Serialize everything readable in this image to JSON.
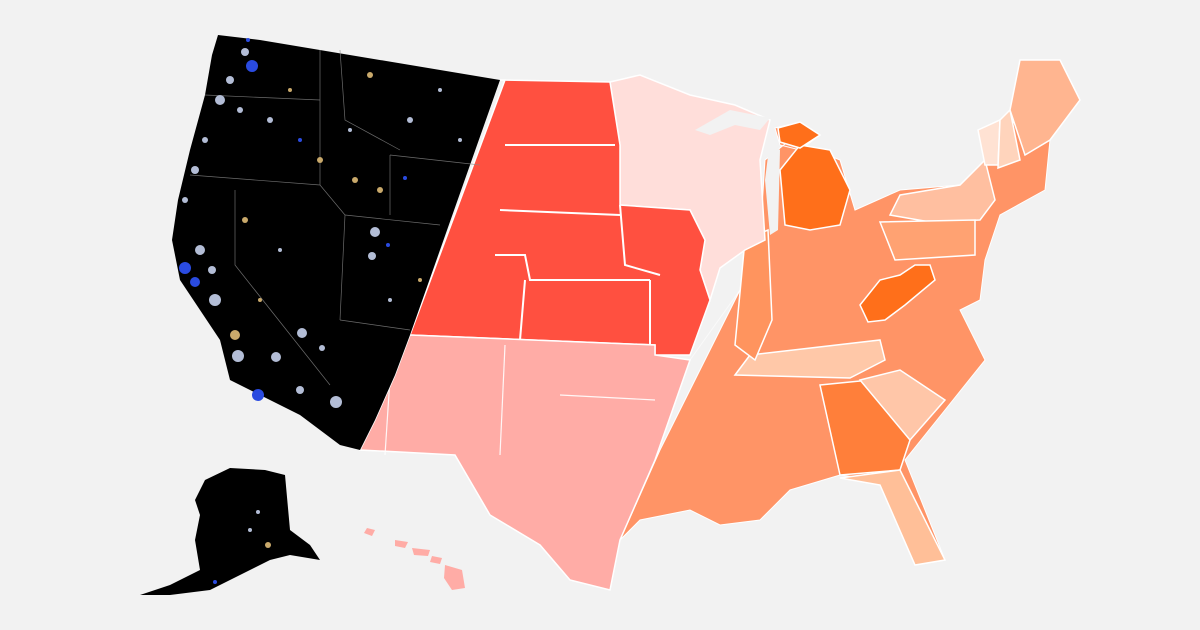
{
  "background_color": "#f2f2f2",
  "regions": [
    {
      "id": "west",
      "fill": "#000000",
      "states": [
        "WA",
        "OR",
        "CA",
        "ID",
        "NV",
        "MT",
        "WY",
        "UT",
        "AZ",
        "CO-west",
        "AK"
      ]
    },
    {
      "id": "plains",
      "fill": "#ff5040",
      "states": [
        "ND",
        "SD",
        "NE",
        "KS",
        "CO",
        "IA",
        "MO"
      ]
    },
    {
      "id": "southwest",
      "fill": "#ffaca6",
      "states": [
        "NM",
        "TX",
        "OK",
        "HI"
      ]
    },
    {
      "id": "upper-midwest",
      "fill": "#ffdeda",
      "states": [
        "MN",
        "WI"
      ]
    },
    {
      "id": "east",
      "fill": "#ff9466",
      "states": [
        "MI",
        "OH",
        "IN",
        "IL",
        "KY",
        "TN",
        "GA",
        "AL",
        "MS",
        "LA",
        "AR",
        "FL",
        "SC",
        "NC",
        "VA",
        "WV",
        "PA",
        "NY",
        "NJ",
        "MD",
        "DE",
        "ME",
        "VT",
        "NH",
        "MA",
        "CT",
        "RI"
      ]
    }
  ],
  "colors": {
    "state_border": "#ffffff",
    "west_dot_light": "#b3bdd6",
    "west_dot_gold": "#c9a96b",
    "west_dot_blue": "#2a4be0",
    "east_light": "#ffc8a8",
    "east_mid": "#ffa06b",
    "east_strong": "#ff6f2e",
    "east_max": "#ff5a10",
    "east_pale": "#ffe2d3"
  }
}
